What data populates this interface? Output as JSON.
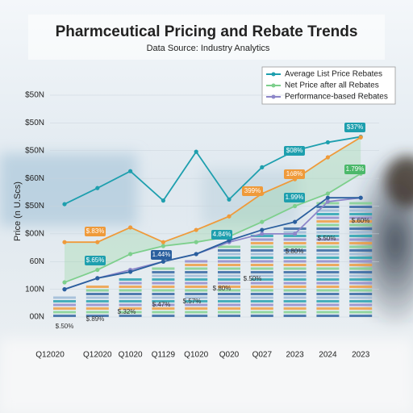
{
  "chart_data": {
    "type": "line",
    "title": "Pharmceutical Pricing and Rebate Trends",
    "subtitle": "Data Source: Industry Analytics",
    "y_label": "Price (n U.Scs)",
    "categories": [
      "Q12020",
      "Q12020",
      "Q1020",
      "Q1129",
      "Q1020",
      "Q020",
      "Q027",
      "2023",
      "2024",
      "2023"
    ],
    "series": [
      {
        "name": "Average List Price Rebates",
        "color": "#1e9fae",
        "values": [
          4.07,
          4.65,
          5.26,
          4.2,
          5.96,
          4.24,
          5.4,
          6.0,
          6.3,
          6.5
        ]
      },
      {
        "name": "Net Price after all Rebates",
        "color": "#7dcf8c",
        "values": [
          1.25,
          1.7,
          2.27,
          2.56,
          2.7,
          2.9,
          3.43,
          4.0,
          4.45,
          5.17
        ]
      },
      {
        "name": "Performance-based Rebates",
        "color": "#8d86c9",
        "values": [
          1.0,
          1.4,
          1.7,
          2.0,
          2.27,
          2.7,
          3.0,
          3.0,
          4.16,
          4.3
        ]
      },
      {
        "color": "#ef9a3a",
        "values": [
          2.7,
          2.7,
          3.23,
          2.7,
          3.14,
          3.63,
          4.45,
          4.97,
          5.76,
          6.48
        ]
      },
      {
        "color": "#2a5f9e",
        "values": [
          1.0,
          1.4,
          1.63,
          2.0,
          2.27,
          2.76,
          3.14,
          3.43,
          4.3,
          4.3
        ]
      }
    ],
    "ylim": [
      0,
      8
    ],
    "yticks": [
      {
        "value": 0,
        "label": "00N"
      },
      {
        "value": 1,
        "label": "100N"
      },
      {
        "value": 2,
        "label": "60N"
      },
      {
        "value": 3,
        "label": "$00N"
      },
      {
        "value": 4,
        "label": "$50N"
      },
      {
        "value": 5,
        "label": "$60N"
      },
      {
        "value": 6,
        "label": "$50N"
      },
      {
        "value": 7,
        "label": "$50N"
      },
      {
        "value": 8,
        "label": "$50N"
      }
    ],
    "grid": true,
    "legend": "top-right",
    "annotations": [
      "$37%",
      "$08%",
      "1ó8%",
      "1.79%",
      "399%",
      "1.99%",
      "$.83%",
      "4.84%",
      "$.65%",
      "1.44%",
      "$.50%",
      "$.89%",
      "$.32%",
      "$.47%",
      "$.57%",
      "$.80%",
      "$.50%",
      "$.80%",
      "$.50%",
      "$.60%"
    ]
  }
}
